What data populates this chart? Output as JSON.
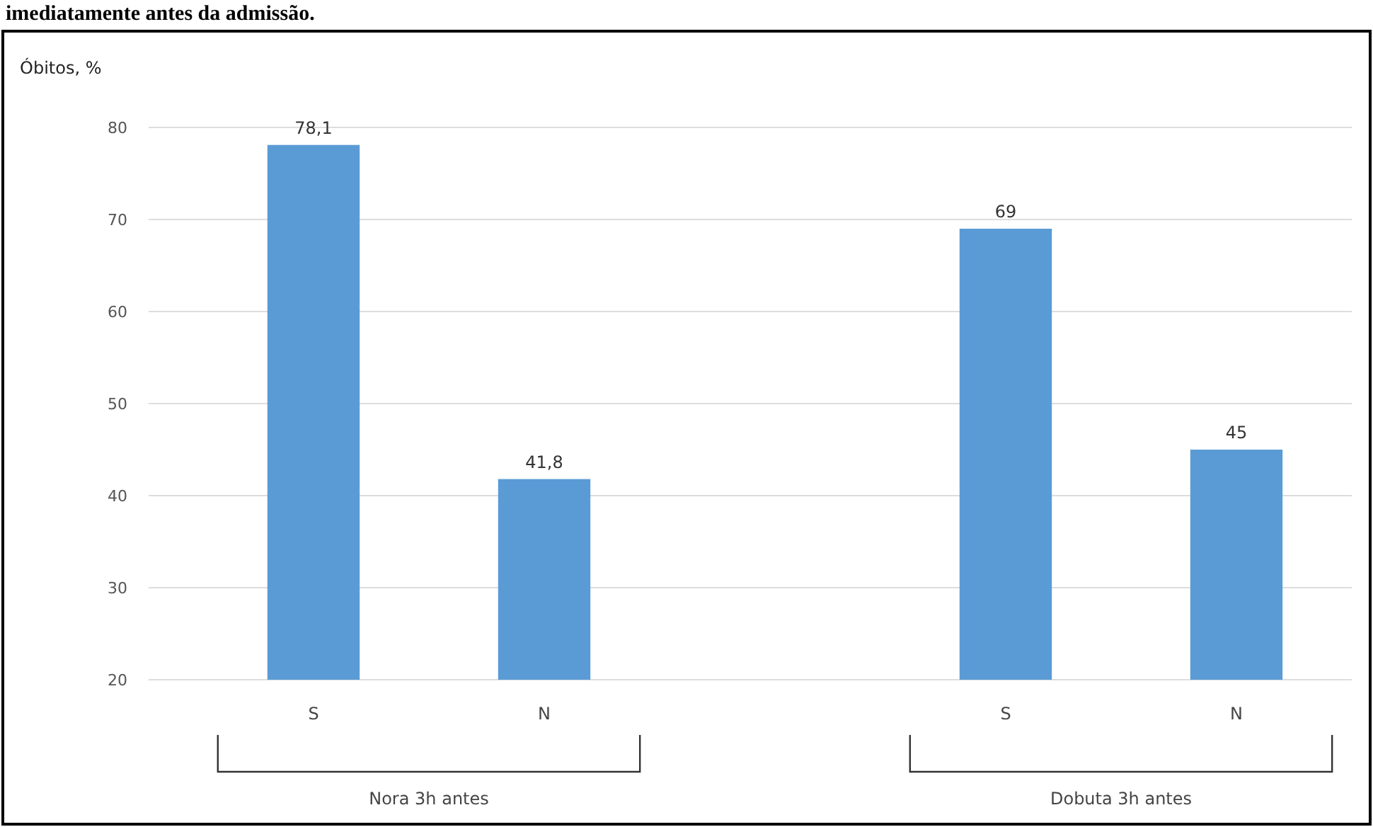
{
  "chart_data": {
    "type": "bar",
    "title": "imediatamente antes da admissão.",
    "ylabel": "Óbitos, %",
    "categories": [
      "S",
      "N",
      null,
      "S",
      "N"
    ],
    "values": [
      78.1,
      41.8,
      null,
      69,
      45
    ],
    "value_labels": [
      "78,1",
      "41,8",
      null,
      "69",
      "45"
    ],
    "color": "#5b9bd5",
    "ylim": [
      20,
      80
    ],
    "yticks": [
      20,
      30,
      40,
      50,
      60,
      70,
      80
    ],
    "grid": "y",
    "annotations": [
      "Nora 3h antes",
      "Dobuta 3h antes"
    ]
  }
}
